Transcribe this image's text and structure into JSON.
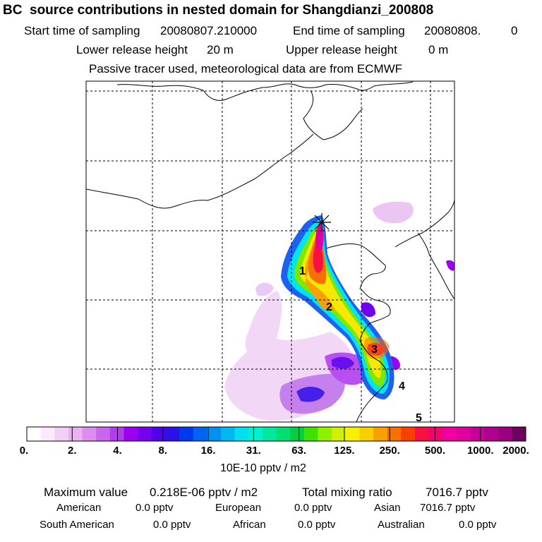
{
  "header": {
    "title": "BC  source contributions in nested domain for Shangdianzi_200808",
    "start_label": "Start time of sampling",
    "start_value": "20080807.210000",
    "end_label": "End time of sampling",
    "end_value": "20080808.",
    "end_value2": "0",
    "lower_label": "Lower release height",
    "lower_value": "20 m",
    "upper_label": "Upper release height",
    "upper_value": "0 m",
    "note": "Passive tracer used, meteorological data are from ECMWF"
  },
  "chart_data": {
    "type": "heatmap",
    "title": "BC  source contributions in nested domain for Shangdianzi_200808",
    "region_labels": [
      "1",
      "2",
      "3",
      "4",
      "5"
    ],
    "colorbar": {
      "unit": "10E-10 pptv / m2",
      "ticks": [
        "0.",
        "2.",
        "4.",
        "8.",
        "16.",
        "31.",
        "63.",
        "125.",
        "250.",
        "500.",
        "1000.",
        "2000."
      ],
      "colors": [
        "#ffffff",
        "#fbeafc",
        "#f3cff7",
        "#eab2f2",
        "#dd8cf0",
        "#c966ec",
        "#b43cf0",
        "#9c00f0",
        "#7800f0",
        "#5000f0",
        "#2c10e8",
        "#0038f0",
        "#0064f0",
        "#0090f0",
        "#00b8f0",
        "#00e0f0",
        "#00f0d0",
        "#00e8a0",
        "#00e070",
        "#00d040",
        "#40e000",
        "#90f000",
        "#d0f000",
        "#f8f000",
        "#f8d000",
        "#f8a000",
        "#f87000",
        "#f84000",
        "#f81040",
        "#f80070",
        "#f000a0",
        "#e000a0",
        "#c80098",
        "#b00090",
        "#980080",
        "#700060"
      ]
    },
    "stats": {
      "max_label": "Maximum value",
      "max_value": "0.218E-06 pptv / m2",
      "total_label": "Total mixing ratio",
      "total_value": "7016.7 pptv",
      "regions": [
        {
          "name": "American",
          "value": "0.0 pptv"
        },
        {
          "name": "European",
          "value": "0.0 pptv"
        },
        {
          "name": "Asian",
          "value": "7016.7 pptv"
        },
        {
          "name": "South American",
          "value": "0.0 pptv"
        },
        {
          "name": "African",
          "value": "0.0 pptv"
        },
        {
          "name": "Australian",
          "value": "0.0 pptv"
        }
      ]
    }
  }
}
